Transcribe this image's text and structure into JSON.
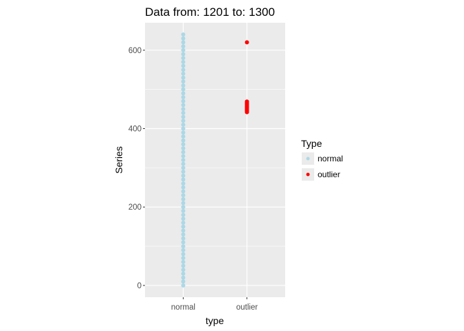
{
  "chart_data": {
    "type": "scatter",
    "title": "Data from:  1201  to:  1300",
    "xlabel": "type",
    "ylabel": "Series",
    "categories": [
      "normal",
      "outlier"
    ],
    "yticks": [
      0,
      200,
      400,
      600
    ],
    "ylim": [
      -30,
      670
    ],
    "grid": true,
    "legend": {
      "title": "Type",
      "position": "right",
      "entries": [
        "normal",
        "outlier"
      ]
    },
    "series": [
      {
        "name": "normal",
        "color": "#add8e6",
        "category": "normal",
        "values": [
          0,
          10,
          20,
          30,
          40,
          50,
          60,
          70,
          80,
          90,
          100,
          110,
          120,
          130,
          140,
          150,
          160,
          170,
          180,
          190,
          200,
          210,
          220,
          230,
          240,
          250,
          260,
          270,
          280,
          290,
          300,
          310,
          320,
          330,
          340,
          350,
          360,
          370,
          380,
          390,
          400,
          410,
          420,
          430,
          440,
          450,
          460,
          470,
          480,
          490,
          500,
          510,
          520,
          530,
          540,
          550,
          560,
          570,
          580,
          590,
          600,
          610,
          620,
          630,
          640
        ]
      },
      {
        "name": "outlier",
        "color": "#ff0000",
        "category": "outlier",
        "values": [
          620,
          442,
          445,
          448,
          451,
          454,
          457,
          460,
          463,
          466,
          469
        ]
      }
    ]
  }
}
